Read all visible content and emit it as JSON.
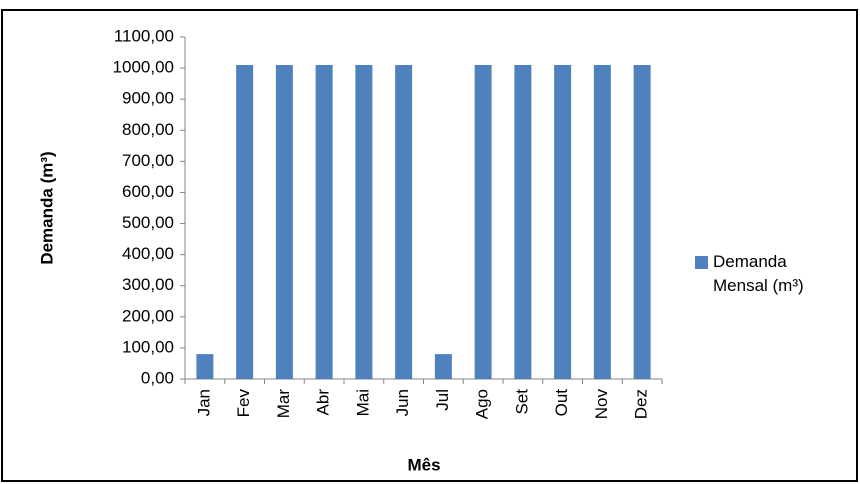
{
  "chart_data": {
    "type": "bar",
    "y_label": "Demanda (m³)",
    "x_label": "Mês",
    "categories": [
      "Jan",
      "Fev",
      "Mar",
      "Abr",
      "Mai",
      "Jun",
      "Jul",
      "Ago",
      "Set",
      "Out",
      "Nov",
      "Dez"
    ],
    "series": [
      {
        "name": "Demanda Mensal (m³)",
        "color": "#4f81bd",
        "values": [
          80,
          1010,
          1010,
          1010,
          1010,
          1010,
          80,
          1010,
          1010,
          1010,
          1010,
          1010
        ]
      }
    ],
    "ylim": [
      0,
      1100
    ],
    "yticks": [
      {
        "value": 0,
        "label": "0,00"
      },
      {
        "value": 100,
        "label": "100,00"
      },
      {
        "value": 200,
        "label": "200,00"
      },
      {
        "value": 300,
        "label": "300,00"
      },
      {
        "value": 400,
        "label": "400,00"
      },
      {
        "value": 500,
        "label": "500,00"
      },
      {
        "value": 600,
        "label": "600,00"
      },
      {
        "value": 700,
        "label": "700,00"
      },
      {
        "value": 800,
        "label": "800,00"
      },
      {
        "value": 900,
        "label": "900,00"
      },
      {
        "value": 1000,
        "label": "1000,00"
      },
      {
        "value": 1100,
        "label": "1100,00"
      }
    ],
    "grid": false,
    "legend": "right"
  }
}
